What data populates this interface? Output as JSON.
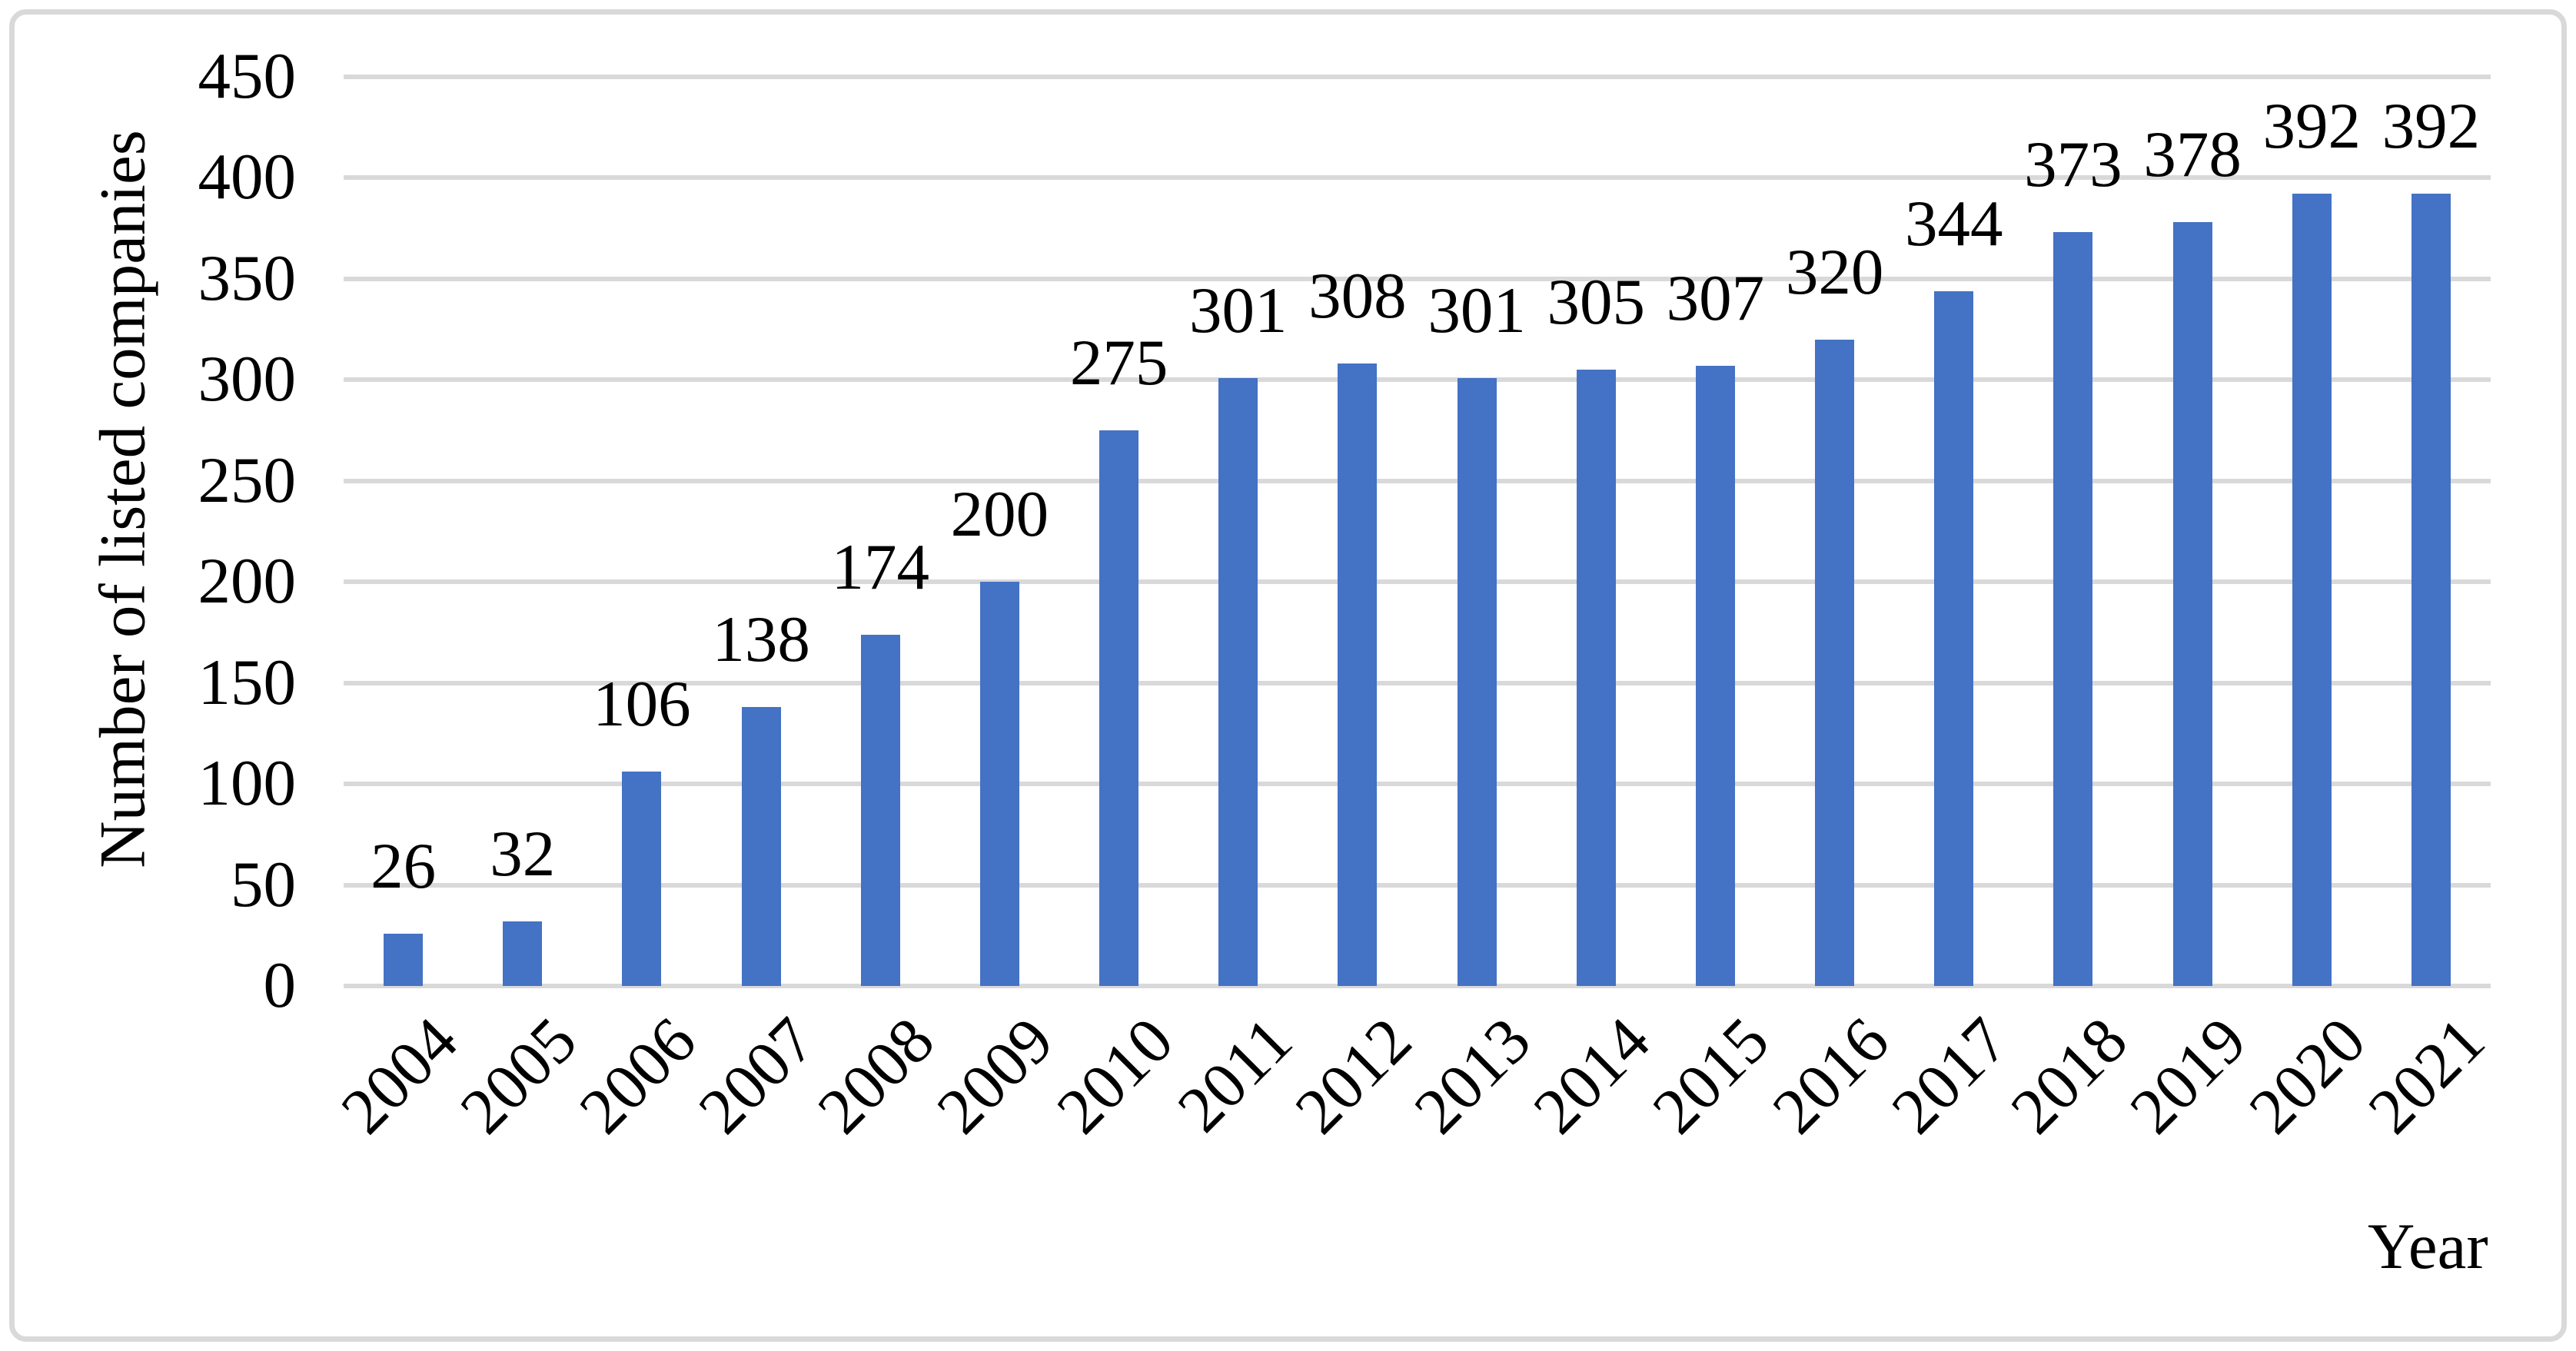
{
  "chart_data": {
    "type": "bar",
    "title": "",
    "xlabel": "Year",
    "ylabel": "Number of listed companies",
    "categories": [
      "2004",
      "2005",
      "2006",
      "2007",
      "2008",
      "2009",
      "2010",
      "2011",
      "2012",
      "2013",
      "2014",
      "2015",
      "2016",
      "2017",
      "2018",
      "2019",
      "2020",
      "2021"
    ],
    "values": [
      26,
      32,
      106,
      138,
      174,
      200,
      275,
      301,
      308,
      301,
      305,
      307,
      320,
      344,
      373,
      378,
      392,
      392
    ],
    "series": [
      {
        "name": "Number of listed companies",
        "values": [
          26,
          32,
          106,
          138,
          174,
          200,
          275,
          301,
          308,
          301,
          305,
          307,
          320,
          344,
          373,
          378,
          392,
          392
        ]
      }
    ],
    "ylim": [
      0,
      450
    ],
    "ytick_step": 50,
    "yticks": [
      0,
      50,
      100,
      150,
      200,
      250,
      300,
      350,
      400,
      450
    ],
    "grid": true,
    "legend_position": "none",
    "data_labels": true,
    "bar_color": "#4472C4",
    "gridline_color": "#D9D9D9",
    "frame_color": "#D9D9D9",
    "text_color": "#000000"
  }
}
